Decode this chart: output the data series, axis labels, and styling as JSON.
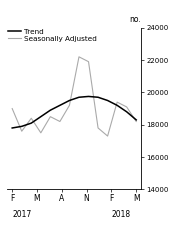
{
  "ylabel": "no.",
  "ylim": [
    14000,
    24000
  ],
  "yticks": [
    14000,
    16000,
    18000,
    20000,
    22000,
    24000
  ],
  "x_labels": [
    "F",
    "M",
    "A",
    "N",
    "F",
    "M"
  ],
  "trend_y": [
    17800,
    17900,
    18100,
    18500,
    18900,
    19200,
    19500,
    19700,
    19750,
    19700,
    19500,
    19200,
    18800,
    18300
  ],
  "seas_adj_y": [
    19000,
    17600,
    18400,
    17500,
    18500,
    18200,
    19200,
    22200,
    21900,
    17800,
    17300,
    19400,
    19100,
    18200
  ],
  "trend_color": "#000000",
  "seas_adj_color": "#aaaaaa",
  "background_color": "#ffffff",
  "legend_trend": "Trend",
  "legend_seas": "Seasonally Adjusted",
  "figsize": [
    1.81,
    2.31
  ],
  "dpi": 100
}
